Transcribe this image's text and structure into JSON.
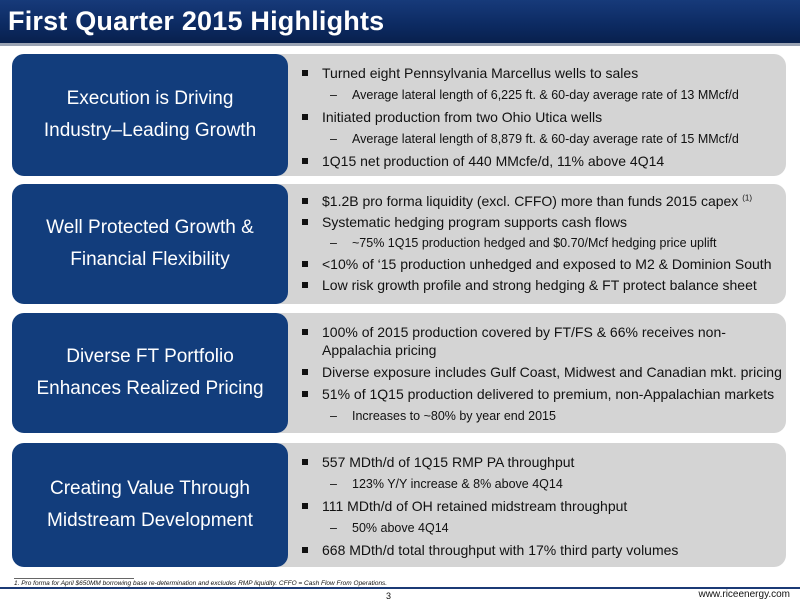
{
  "title": "First Quarter 2015 Highlights",
  "sections": [
    {
      "heading_lines": [
        "Execution is Driving",
        "Industry–Leading Growth"
      ],
      "bullets": [
        {
          "level": 1,
          "text": "Turned eight Pennsylvania Marcellus wells to sales"
        },
        {
          "level": 2,
          "text": "Average lateral length of 6,225 ft. & 60-day average rate of 13 MMcf/d"
        },
        {
          "level": 1,
          "text": "Initiated production from two Ohio Utica wells"
        },
        {
          "level": 2,
          "text": "Average lateral length of 8,879 ft. & 60-day average rate of 15 MMcf/d"
        },
        {
          "level": 1,
          "text": "1Q15 net production of 440 MMcfe/d, 11% above 4Q14"
        }
      ]
    },
    {
      "heading_lines": [
        "Well Protected Growth &",
        "Financial Flexibility"
      ],
      "bullets": [
        {
          "level": 1,
          "text": "$1.2B pro forma liquidity (excl. CFFO) more than funds 2015 capex",
          "sup": "(1)"
        },
        {
          "level": 1,
          "text": "Systematic hedging program supports cash flows"
        },
        {
          "level": 2,
          "text": "~75% 1Q15 production hedged and $0.70/Mcf hedging price uplift"
        },
        {
          "level": 1,
          "text": "<10% of ‘15 production unhedged and exposed to M2 & Dominion South"
        },
        {
          "level": 1,
          "text": "Low risk growth profile and strong hedging & FT protect balance sheet"
        }
      ]
    },
    {
      "heading_lines": [
        "Diverse FT Portfolio",
        "Enhances Realized Pricing"
      ],
      "bullets": [
        {
          "level": 1,
          "text": "100% of 2015 production covered by FT/FS & 66% receives non-Appalachia pricing"
        },
        {
          "level": 1,
          "text": "Diverse exposure includes Gulf Coast, Midwest and Canadian mkt. pricing"
        },
        {
          "level": 1,
          "text": "51% of 1Q15 production delivered to premium, non-Appalachian markets"
        },
        {
          "level": 2,
          "text": "Increases to ~80% by year end 2015"
        }
      ]
    },
    {
      "heading_lines": [
        "Creating Value Through",
        "Midstream Development"
      ],
      "bullets": [
        {
          "level": 1,
          "text": "557 MDth/d of 1Q15 RMP PA throughput"
        },
        {
          "level": 2,
          "text": "123% Y/Y increase & 8% above 4Q14"
        },
        {
          "level": 1,
          "text": "111 MDth/d of OH retained midstream throughput"
        },
        {
          "level": 2,
          "text": "50% above 4Q14"
        },
        {
          "level": 1,
          "text": "668 MDth/d total throughput with 17% third party volumes"
        }
      ]
    }
  ],
  "footnote": "1.      Pro forma for April $650MM borrowing base re-determination and excludes RMP liquidity. CFFO = Cash Flow From Operations.",
  "page_number": "3",
  "website": "www.riceenergy.com",
  "colors": {
    "title_bar": "#0c2a61",
    "heading_box": "#123d7c",
    "content_box": "#d4d4d4"
  },
  "icons": {
    "level1_bullet": "square-bullet-icon",
    "level2_bullet": "dash-bullet-icon"
  }
}
